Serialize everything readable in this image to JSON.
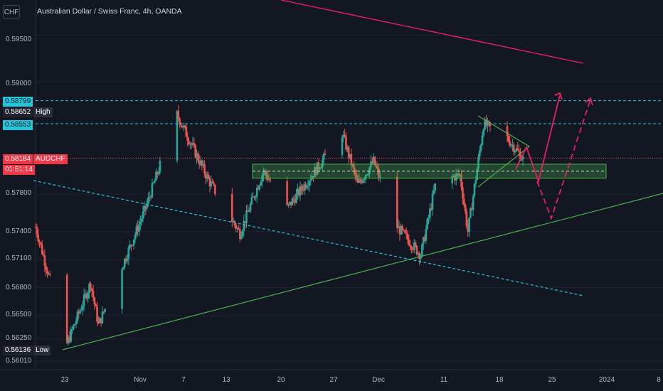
{
  "header": {
    "currency_badge": "CHF",
    "title": "Australian Dollar / Swiss Franc, 4h, OANDA"
  },
  "price_axis": {
    "labels": [
      "0.59500",
      "0.59000",
      "0.57800",
      "0.57400",
      "0.57100",
      "0.56800",
      "0.56500",
      "0.56250",
      "0.56010"
    ]
  },
  "price_tags": {
    "level_high": "0.58799",
    "high_value": "0.58652",
    "high_label": "High",
    "level_mid": "0.58553",
    "current_value": "0.58184",
    "symbol": "AUDCHF",
    "countdown": "01:51:14",
    "low_value": "0.56136",
    "low_label": "Low"
  },
  "time_axis": {
    "labels": [
      "23",
      "Nov",
      "7",
      "13",
      "20",
      "27",
      "Dec",
      "11",
      "18",
      "25",
      "2024",
      "8"
    ]
  },
  "colors": {
    "background": "#131722",
    "bull": "#26a69a",
    "bear": "#ef5350",
    "cyan_level": "#26c6da",
    "trend_green": "#4caf50",
    "projection": "#e91e63"
  },
  "chart_data": {
    "type": "candlestick",
    "symbol": "AUDCHF",
    "timeframe": "4h",
    "series": [
      {
        "name": "AUDCHF",
        "key_points": [
          {
            "x": "Oct 19",
            "y": 0.5745
          },
          {
            "x": "Oct 23",
            "y": 0.562
          },
          {
            "x": "Oct 26",
            "y": 0.5685
          },
          {
            "x": "Oct 27",
            "y": 0.564
          },
          {
            "x": "Nov 2",
            "y": 0.5765
          },
          {
            "x": "Nov 6",
            "y": 0.5865
          },
          {
            "x": "Nov 10",
            "y": 0.5795
          },
          {
            "x": "Nov 14",
            "y": 0.5738
          },
          {
            "x": "Nov 17",
            "y": 0.5805
          },
          {
            "x": "Nov 20",
            "y": 0.5765
          },
          {
            "x": "Nov 24",
            "y": 0.581
          },
          {
            "x": "Nov 27",
            "y": 0.5845
          },
          {
            "x": "Nov 29",
            "y": 0.579
          },
          {
            "x": "Dec 1",
            "y": 0.5815
          },
          {
            "x": "Dec 4",
            "y": 0.5745
          },
          {
            "x": "Dec 7",
            "y": 0.5715
          },
          {
            "x": "Dec 9",
            "y": 0.5795
          },
          {
            "x": "Dec 12",
            "y": 0.58
          },
          {
            "x": "Dec 13",
            "y": 0.574
          },
          {
            "x": "Dec 15",
            "y": 0.5855
          },
          {
            "x": "Dec 18",
            "y": 0.584
          },
          {
            "x": "Dec 20",
            "y": 0.5818
          }
        ]
      }
    ],
    "levels": [
      0.58799,
      0.58553
    ],
    "current_price": 0.58184,
    "high": 0.58652,
    "low": 0.56136,
    "ylim": [
      0.5596,
      0.598
    ]
  }
}
